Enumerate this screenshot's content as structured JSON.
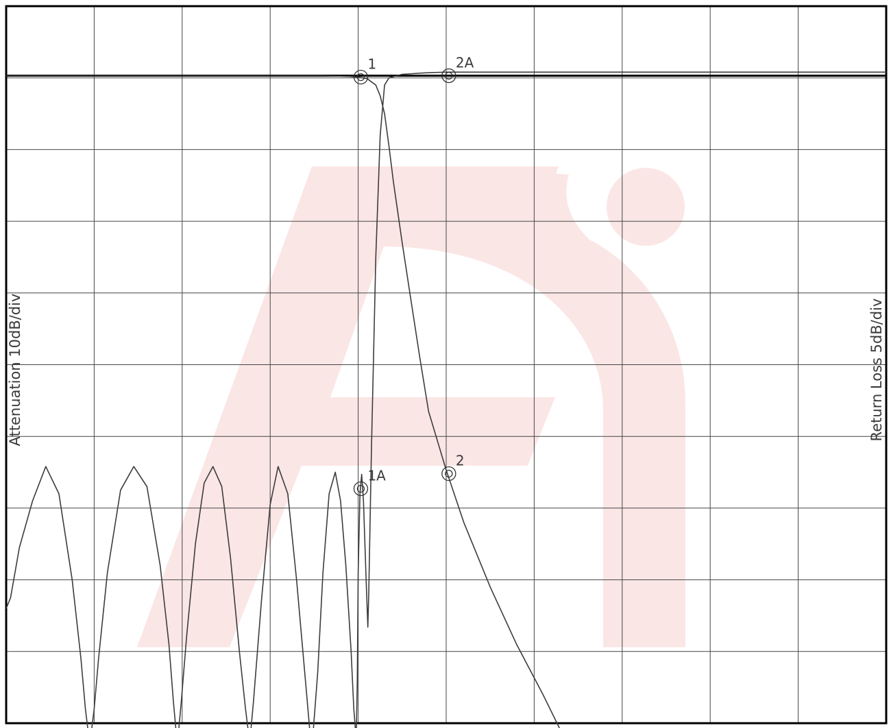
{
  "chart_data": {
    "type": "line",
    "title": "",
    "y_left_label": "Attenuation 10dB/div",
    "y_right_label": "Return Loss 5dB/div",
    "grid": true,
    "x_divisions": 10,
    "y_divisions": 10,
    "xlim": [
      0,
      10
    ],
    "ylim": [
      0,
      10
    ],
    "series": [
      {
        "values": [
          [
            0.0,
            9.03
          ],
          [
            1.0,
            9.03
          ],
          [
            2.0,
            9.03
          ],
          [
            3.0,
            9.03
          ],
          [
            3.6,
            9.03
          ],
          [
            3.9,
            9.02
          ],
          [
            4.0,
            9.01
          ],
          [
            4.1,
            8.99
          ],
          [
            4.2,
            8.9
          ],
          [
            4.25,
            8.75
          ],
          [
            4.3,
            8.5
          ],
          [
            4.35,
            8.05
          ],
          [
            4.4,
            7.55
          ],
          [
            4.5,
            6.7
          ],
          [
            4.6,
            5.9
          ],
          [
            4.7,
            5.1
          ],
          [
            4.8,
            4.35
          ],
          [
            5.0,
            3.53
          ],
          [
            5.2,
            2.8
          ],
          [
            5.5,
            1.9
          ],
          [
            5.8,
            1.1
          ],
          [
            6.1,
            0.4
          ],
          [
            6.3,
            -0.1
          ]
        ]
      },
      {
        "values": [
          [
            0.0,
            1.6
          ],
          [
            0.05,
            1.75
          ],
          [
            0.15,
            2.45
          ],
          [
            0.3,
            3.1
          ],
          [
            0.45,
            3.58
          ],
          [
            0.6,
            3.2
          ],
          [
            0.75,
            2.0
          ],
          [
            0.85,
            0.9
          ],
          [
            0.9,
            0.2
          ],
          [
            0.93,
            -0.1
          ],
          [
            0.97,
            -0.1
          ],
          [
            1.0,
            0.2
          ],
          [
            1.05,
            0.9
          ],
          [
            1.15,
            2.1
          ],
          [
            1.3,
            3.25
          ],
          [
            1.45,
            3.58
          ],
          [
            1.6,
            3.3
          ],
          [
            1.75,
            2.2
          ],
          [
            1.85,
            1.1
          ],
          [
            1.9,
            0.3
          ],
          [
            1.93,
            -0.1
          ],
          [
            1.96,
            -0.1
          ],
          [
            1.99,
            0.3
          ],
          [
            2.05,
            1.2
          ],
          [
            2.15,
            2.5
          ],
          [
            2.25,
            3.35
          ],
          [
            2.35,
            3.58
          ],
          [
            2.45,
            3.3
          ],
          [
            2.55,
            2.3
          ],
          [
            2.65,
            1.0
          ],
          [
            2.72,
            0.2
          ],
          [
            2.75,
            -0.1
          ],
          [
            2.78,
            -0.1
          ],
          [
            2.81,
            0.3
          ],
          [
            2.9,
            1.7
          ],
          [
            3.0,
            3.05
          ],
          [
            3.09,
            3.58
          ],
          [
            3.2,
            3.2
          ],
          [
            3.3,
            2.0
          ],
          [
            3.4,
            0.6
          ],
          [
            3.45,
            -0.1
          ],
          [
            3.49,
            -0.1
          ],
          [
            3.54,
            0.7
          ],
          [
            3.6,
            2.1
          ],
          [
            3.67,
            3.2
          ],
          [
            3.74,
            3.5
          ],
          [
            3.8,
            3.1
          ],
          [
            3.86,
            2.2
          ],
          [
            3.92,
            1.0
          ],
          [
            3.95,
            0.2
          ],
          [
            3.97,
            -0.1
          ],
          [
            3.98,
            -0.1
          ],
          [
            3.99,
            0.6
          ],
          [
            4.0,
            2.1
          ],
          [
            4.02,
            3.2
          ],
          [
            4.04,
            3.47
          ],
          [
            4.06,
            3.1
          ],
          [
            4.09,
            2.0
          ],
          [
            4.11,
            1.34
          ],
          [
            4.12,
            1.8
          ],
          [
            4.15,
            3.8
          ],
          [
            4.2,
            6.5
          ],
          [
            4.25,
            8.2
          ],
          [
            4.3,
            8.9
          ],
          [
            4.35,
            9.0
          ],
          [
            4.5,
            9.05
          ],
          [
            4.75,
            9.07
          ],
          [
            5.0,
            9.08
          ],
          [
            6.0,
            9.08
          ],
          [
            7.0,
            9.08
          ],
          [
            8.0,
            9.08
          ],
          [
            9.0,
            9.08
          ],
          [
            10.0,
            9.08
          ]
        ]
      }
    ],
    "markers": [
      {
        "label": "1",
        "x": 4.03,
        "y": 9.01
      },
      {
        "label": "2A",
        "x": 5.03,
        "y": 9.03
      },
      {
        "label": "2",
        "x": 5.03,
        "y": 3.48
      },
      {
        "label": "1A",
        "x": 4.03,
        "y": 3.27
      }
    ]
  }
}
